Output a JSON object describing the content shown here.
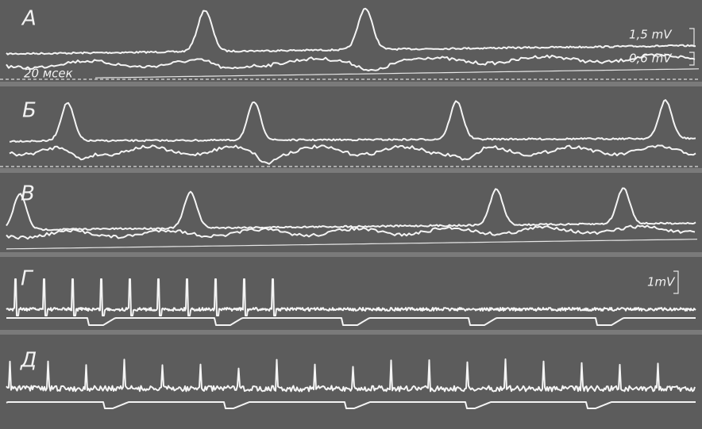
{
  "panels": [
    {
      "label": "А"
    },
    {
      "label": "Б"
    },
    {
      "label": "В"
    },
    {
      "label": "Г"
    },
    {
      "label": "Д"
    }
  ],
  "annotations": {
    "scale_upper": "1,5 mV",
    "scale_lower": "0,6 mV",
    "time_mark": "20 мсек",
    "scale_g": "1mV"
  }
}
